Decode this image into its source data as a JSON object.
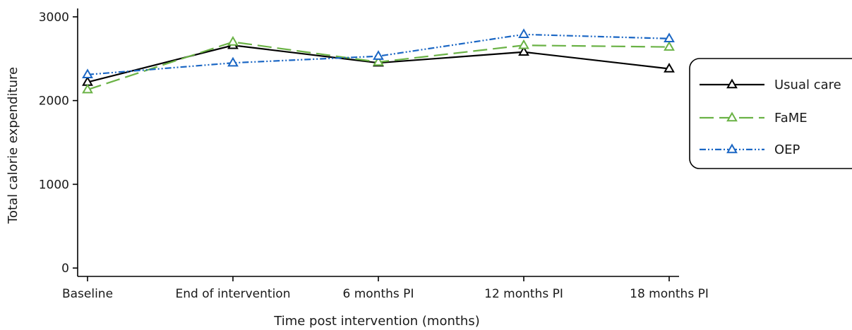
{
  "chart_data": {
    "type": "line",
    "categories": [
      "Baseline",
      "End of intervention",
      "6 months PI",
      "12 months PI",
      "18 months PI"
    ],
    "xlabel": "Time post intervention (months)",
    "ylabel": "Total calorie expenditure",
    "ylim": [
      -100,
      3100
    ],
    "yticks": [
      0,
      1000,
      2000,
      3000
    ],
    "grid": false,
    "legend_position": "right",
    "series": [
      {
        "name": "Usual care",
        "values": [
          2220,
          2660,
          2450,
          2580,
          2380
        ],
        "color": "#000000",
        "dash": "solid",
        "marker": "triangle-open"
      },
      {
        "name": "FaME",
        "values": [
          2130,
          2700,
          2460,
          2660,
          2640
        ],
        "color": "#6ab245",
        "dash": "dashed",
        "marker": "triangle-open"
      },
      {
        "name": "OEP",
        "values": [
          2310,
          2450,
          2530,
          2790,
          2740
        ],
        "color": "#1a66c4",
        "dash": "dashdotdot",
        "marker": "triangle-open"
      }
    ]
  }
}
